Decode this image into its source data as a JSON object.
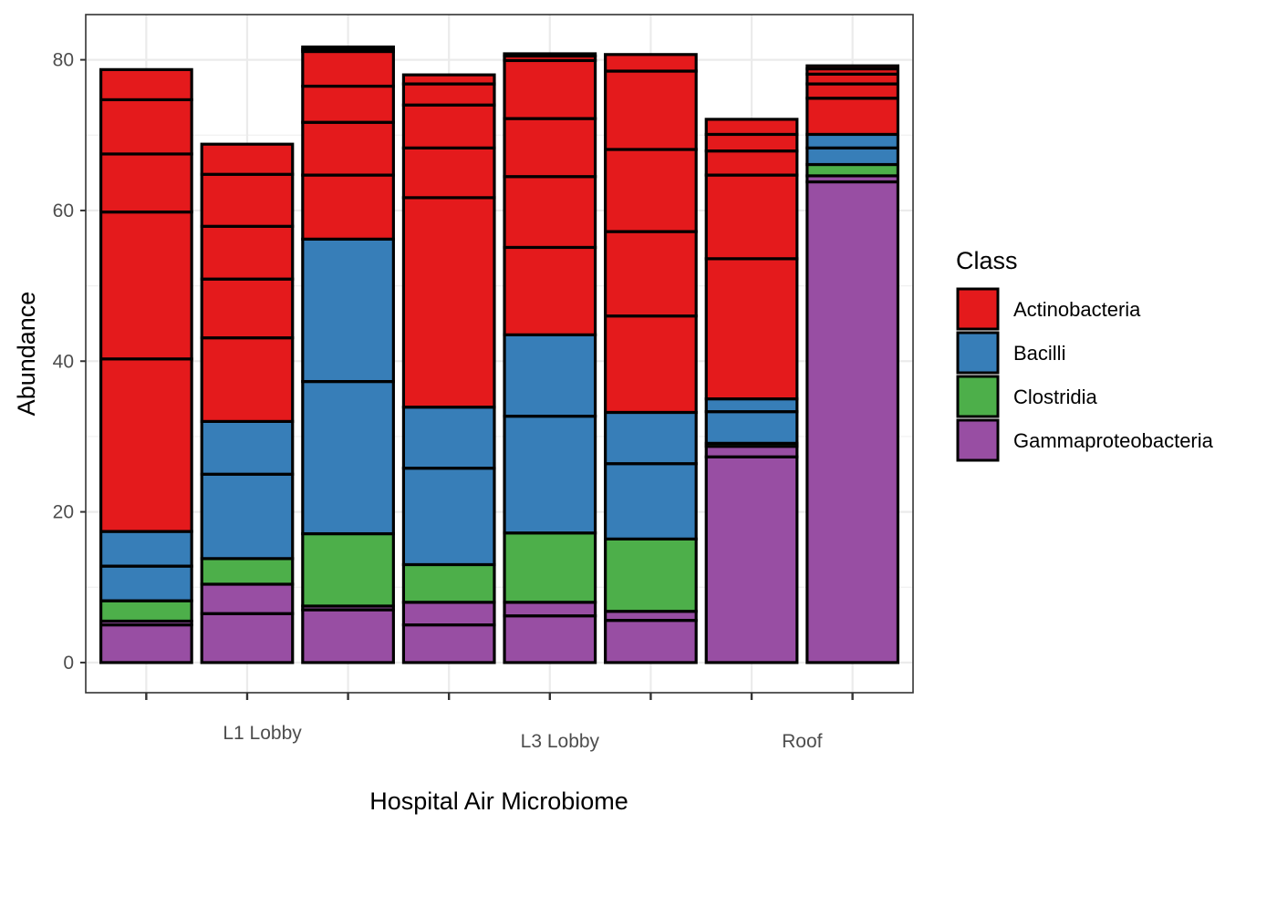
{
  "chart_data": {
    "type": "bar",
    "stacked": true,
    "xlabel": "Hospital Air Microbiome",
    "ylabel": "Abundance",
    "ylim": [
      -4,
      86
    ],
    "y_ticks": [
      0,
      20,
      40,
      60,
      80
    ],
    "grid": true,
    "legend_placement": "right",
    "categories": [
      "1",
      "2",
      "3",
      "4",
      "5",
      "6",
      "7",
      "8"
    ],
    "x_labels": [
      {
        "text": "L1 Lobby",
        "x": 2.15,
        "row": 1
      },
      {
        "text": "L3 Lobby",
        "x": 5.1,
        "row": 2
      },
      {
        "text": "Roof",
        "x": 7.5,
        "row": 2
      }
    ],
    "legend": {
      "title": "Class",
      "entries": [
        {
          "label": "Actinobacteria",
          "color": "#E41A1C"
        },
        {
          "label": "Bacilli",
          "color": "#377EB8"
        },
        {
          "label": "Clostridia",
          "color": "#4DAF4A"
        },
        {
          "label": "Gammaproteobacteria",
          "color": "#984EA3"
        }
      ]
    },
    "bars": [
      {
        "category": "1",
        "segments": [
          {
            "class": "Gammaproteobacteria",
            "value": 5.0
          },
          {
            "class": "Gammaproteobacteria",
            "value": 0.5
          },
          {
            "class": "Clostridia",
            "value": 2.7
          },
          {
            "class": "Bacilli",
            "value": 4.6
          },
          {
            "class": "Bacilli",
            "value": 4.6
          },
          {
            "class": "Actinobacteria",
            "value": 22.9
          },
          {
            "class": "Actinobacteria",
            "value": 19.5
          },
          {
            "class": "Actinobacteria",
            "value": 7.7
          },
          {
            "class": "Actinobacteria",
            "value": 7.2
          },
          {
            "class": "Actinobacteria",
            "value": 4.0
          }
        ]
      },
      {
        "category": "2",
        "segments": [
          {
            "class": "Gammaproteobacteria",
            "value": 6.5
          },
          {
            "class": "Gammaproteobacteria",
            "value": 3.9
          },
          {
            "class": "Clostridia",
            "value": 3.4
          },
          {
            "class": "Bacilli",
            "value": 11.2
          },
          {
            "class": "Bacilli",
            "value": 7.0
          },
          {
            "class": "Actinobacteria",
            "value": 11.1
          },
          {
            "class": "Actinobacteria",
            "value": 7.8
          },
          {
            "class": "Actinobacteria",
            "value": 7.0
          },
          {
            "class": "Actinobacteria",
            "value": 6.9
          },
          {
            "class": "Actinobacteria",
            "value": 4.0
          }
        ]
      },
      {
        "category": "3",
        "segments": [
          {
            "class": "Gammaproteobacteria",
            "value": 7.0
          },
          {
            "class": "Gammaproteobacteria",
            "value": 0.5
          },
          {
            "class": "Clostridia",
            "value": 9.6
          },
          {
            "class": "Bacilli",
            "value": 20.2
          },
          {
            "class": "Bacilli",
            "value": 18.9
          },
          {
            "class": "Actinobacteria",
            "value": 8.5
          },
          {
            "class": "Actinobacteria",
            "value": 7.0
          },
          {
            "class": "Actinobacteria",
            "value": 4.8
          },
          {
            "class": "Actinobacteria",
            "value": 4.6
          },
          {
            "class": "Actinobacteria",
            "value": 0.3
          },
          {
            "class": "Actinobacteria",
            "value": 0.3
          }
        ]
      },
      {
        "category": "4",
        "segments": [
          {
            "class": "Gammaproteobacteria",
            "value": 5.0
          },
          {
            "class": "Gammaproteobacteria",
            "value": 3.0
          },
          {
            "class": "Clostridia",
            "value": 5.0
          },
          {
            "class": "Bacilli",
            "value": 12.8
          },
          {
            "class": "Bacilli",
            "value": 8.1
          },
          {
            "class": "Actinobacteria",
            "value": 27.8
          },
          {
            "class": "Actinobacteria",
            "value": 6.6
          },
          {
            "class": "Actinobacteria",
            "value": 5.7
          },
          {
            "class": "Actinobacteria",
            "value": 2.8
          },
          {
            "class": "Actinobacteria",
            "value": 1.2
          }
        ]
      },
      {
        "category": "5",
        "segments": [
          {
            "class": "Gammaproteobacteria",
            "value": 6.2
          },
          {
            "class": "Gammaproteobacteria",
            "value": 1.8
          },
          {
            "class": "Clostridia",
            "value": 9.2
          },
          {
            "class": "Bacilli",
            "value": 15.5
          },
          {
            "class": "Bacilli",
            "value": 10.8
          },
          {
            "class": "Actinobacteria",
            "value": 11.6
          },
          {
            "class": "Actinobacteria",
            "value": 9.4
          },
          {
            "class": "Actinobacteria",
            "value": 7.7
          },
          {
            "class": "Actinobacteria",
            "value": 7.7
          },
          {
            "class": "Actinobacteria",
            "value": 0.6
          },
          {
            "class": "Actinobacteria",
            "value": 0.3
          }
        ]
      },
      {
        "category": "6",
        "segments": [
          {
            "class": "Gammaproteobacteria",
            "value": 5.6
          },
          {
            "class": "Gammaproteobacteria",
            "value": 1.2
          },
          {
            "class": "Clostridia",
            "value": 9.6
          },
          {
            "class": "Bacilli",
            "value": 10.0
          },
          {
            "class": "Bacilli",
            "value": 6.8
          },
          {
            "class": "Actinobacteria",
            "value": 12.8
          },
          {
            "class": "Actinobacteria",
            "value": 11.2
          },
          {
            "class": "Actinobacteria",
            "value": 10.9
          },
          {
            "class": "Actinobacteria",
            "value": 10.4
          },
          {
            "class": "Actinobacteria",
            "value": 2.2
          }
        ]
      },
      {
        "category": "7",
        "segments": [
          {
            "class": "Gammaproteobacteria",
            "value": 27.3
          },
          {
            "class": "Gammaproteobacteria",
            "value": 1.4
          },
          {
            "class": "Clostridia",
            "value": 0.4
          },
          {
            "class": "Bacilli",
            "value": 4.2
          },
          {
            "class": "Bacilli",
            "value": 1.7
          },
          {
            "class": "Actinobacteria",
            "value": 18.6
          },
          {
            "class": "Actinobacteria",
            "value": 11.1
          },
          {
            "class": "Actinobacteria",
            "value": 3.2
          },
          {
            "class": "Actinobacteria",
            "value": 2.2
          },
          {
            "class": "Actinobacteria",
            "value": 2.0
          }
        ]
      },
      {
        "category": "8",
        "segments": [
          {
            "class": "Gammaproteobacteria",
            "value": 63.8
          },
          {
            "class": "Gammaproteobacteria",
            "value": 0.8
          },
          {
            "class": "Clostridia",
            "value": 1.5
          },
          {
            "class": "Bacilli",
            "value": 2.2
          },
          {
            "class": "Bacilli",
            "value": 1.8
          },
          {
            "class": "Actinobacteria",
            "value": 4.8
          },
          {
            "class": "Actinobacteria",
            "value": 1.9
          },
          {
            "class": "Actinobacteria",
            "value": 1.3
          },
          {
            "class": "Actinobacteria",
            "value": 0.7
          },
          {
            "class": "Actinobacteria",
            "value": 0.4
          }
        ]
      }
    ]
  }
}
